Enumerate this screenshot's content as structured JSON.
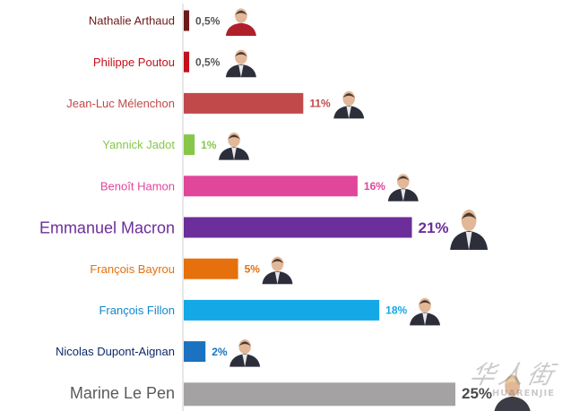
{
  "chart_data": {
    "type": "bar",
    "orientation": "horizontal",
    "title": "",
    "xlabel": "",
    "ylabel": "",
    "xlim": [
      0,
      25
    ],
    "grid": false,
    "legend": "none",
    "categories": [
      "Nathalie Arthaud",
      "Philippe Poutou",
      "Jean-Luc Mélenchon",
      "Yannick Jadot",
      "Benoît Hamon",
      "Emmanuel Macron",
      "François Bayrou",
      "François Fillon",
      "Nicolas Dupont-Aignan",
      "Marine Le Pen"
    ],
    "values": [
      0.5,
      0.5,
      11,
      1,
      16,
      21,
      5,
      18,
      2,
      25
    ],
    "value_labels": [
      "0,5%",
      "0,5%",
      "11%",
      "1%",
      "16%",
      "21%",
      "5%",
      "18%",
      "2%",
      "25%"
    ],
    "colors": [
      "#6e1a1a",
      "#c3101a",
      "#c2494a",
      "#86c74a",
      "#e0469a",
      "#6c2e9a",
      "#e6700c",
      "#14a8e6",
      "#1a72c0",
      "#a4a2a2"
    ],
    "name_colors": [
      "#6e1a1a",
      "#c3101a",
      "#c2494a",
      "#86c74a",
      "#e0469a",
      "#6c2e9a",
      "#e6700c",
      "#1188cc",
      "#0c2a6a",
      "#5a5a5a"
    ],
    "value_label_colors": [
      "#555555",
      "#555555",
      "#c2494a",
      "#86c74a",
      "#e0469a",
      "#6c2e9a",
      "#e6700c",
      "#14a8e6",
      "#1a72c0",
      "#4a4a4a"
    ],
    "emphasized": [
      false,
      false,
      false,
      false,
      false,
      true,
      false,
      false,
      false,
      true
    ]
  },
  "watermark": {
    "cn": "华人街",
    "en": "HUARENJIE"
  }
}
